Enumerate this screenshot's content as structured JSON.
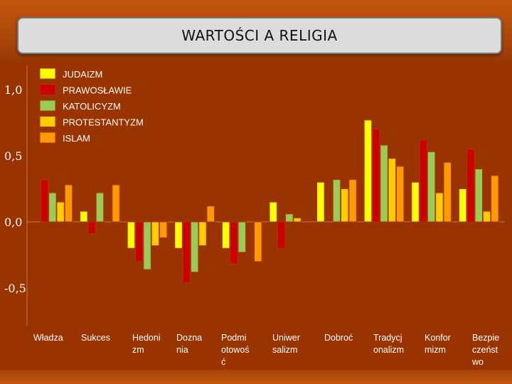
{
  "title": "WARTOŚCI A RELIGIA",
  "chart_data": {
    "type": "bar",
    "title": "",
    "xlabel": "",
    "ylabel": "",
    "ylim": [
      -0.8,
      1.1
    ],
    "yticks": [
      1.0,
      0.5,
      0.0,
      -0.5
    ],
    "ytick_labels": [
      "1,0",
      "0,5",
      "0,0",
      "-0,5"
    ],
    "legend_position": "top-left",
    "categories": [
      [
        "Władza"
      ],
      [
        "Sukces"
      ],
      [
        "Hedoni",
        "zm"
      ],
      [
        "Dozna",
        "nia"
      ],
      [
        "Podmi",
        "otowoś",
        "ć"
      ],
      [
        "Uniwer",
        "salizm"
      ],
      [
        "Dobroć"
      ],
      [
        "Tradycj",
        "onalizm"
      ],
      [
        "Konfor",
        "mizm"
      ],
      [
        "Bezpie",
        "czeńst",
        "wo"
      ]
    ],
    "series": [
      {
        "name": "JUDAIZM",
        "color": "#ffff00",
        "values": [
          null,
          0.08,
          -0.2,
          -0.2,
          -0.2,
          0.15,
          0.3,
          0.77,
          0.3,
          0.25
        ]
      },
      {
        "name": "PRAWOSŁAWIE",
        "color": "#cc0000",
        "values": [
          0.32,
          -0.09,
          -0.3,
          -0.46,
          -0.32,
          -0.2,
          null,
          0.7,
          0.62,
          0.55
        ]
      },
      {
        "name": "KATOLICYZM",
        "color": "#99cc55",
        "values": [
          0.22,
          0.22,
          -0.36,
          -0.38,
          -0.23,
          0.06,
          0.32,
          0.58,
          0.53,
          0.4
        ]
      },
      {
        "name": "PROTESTANTYZM",
        "color": "#ffcc00",
        "values": [
          0.15,
          null,
          -0.18,
          -0.18,
          null,
          0.03,
          0.25,
          0.48,
          0.22,
          0.08
        ]
      },
      {
        "name": "ISLAM",
        "color": "#ff9900",
        "values": [
          0.28,
          0.28,
          -0.12,
          0.12,
          -0.3,
          null,
          0.32,
          0.42,
          0.45,
          0.35
        ]
      }
    ]
  }
}
